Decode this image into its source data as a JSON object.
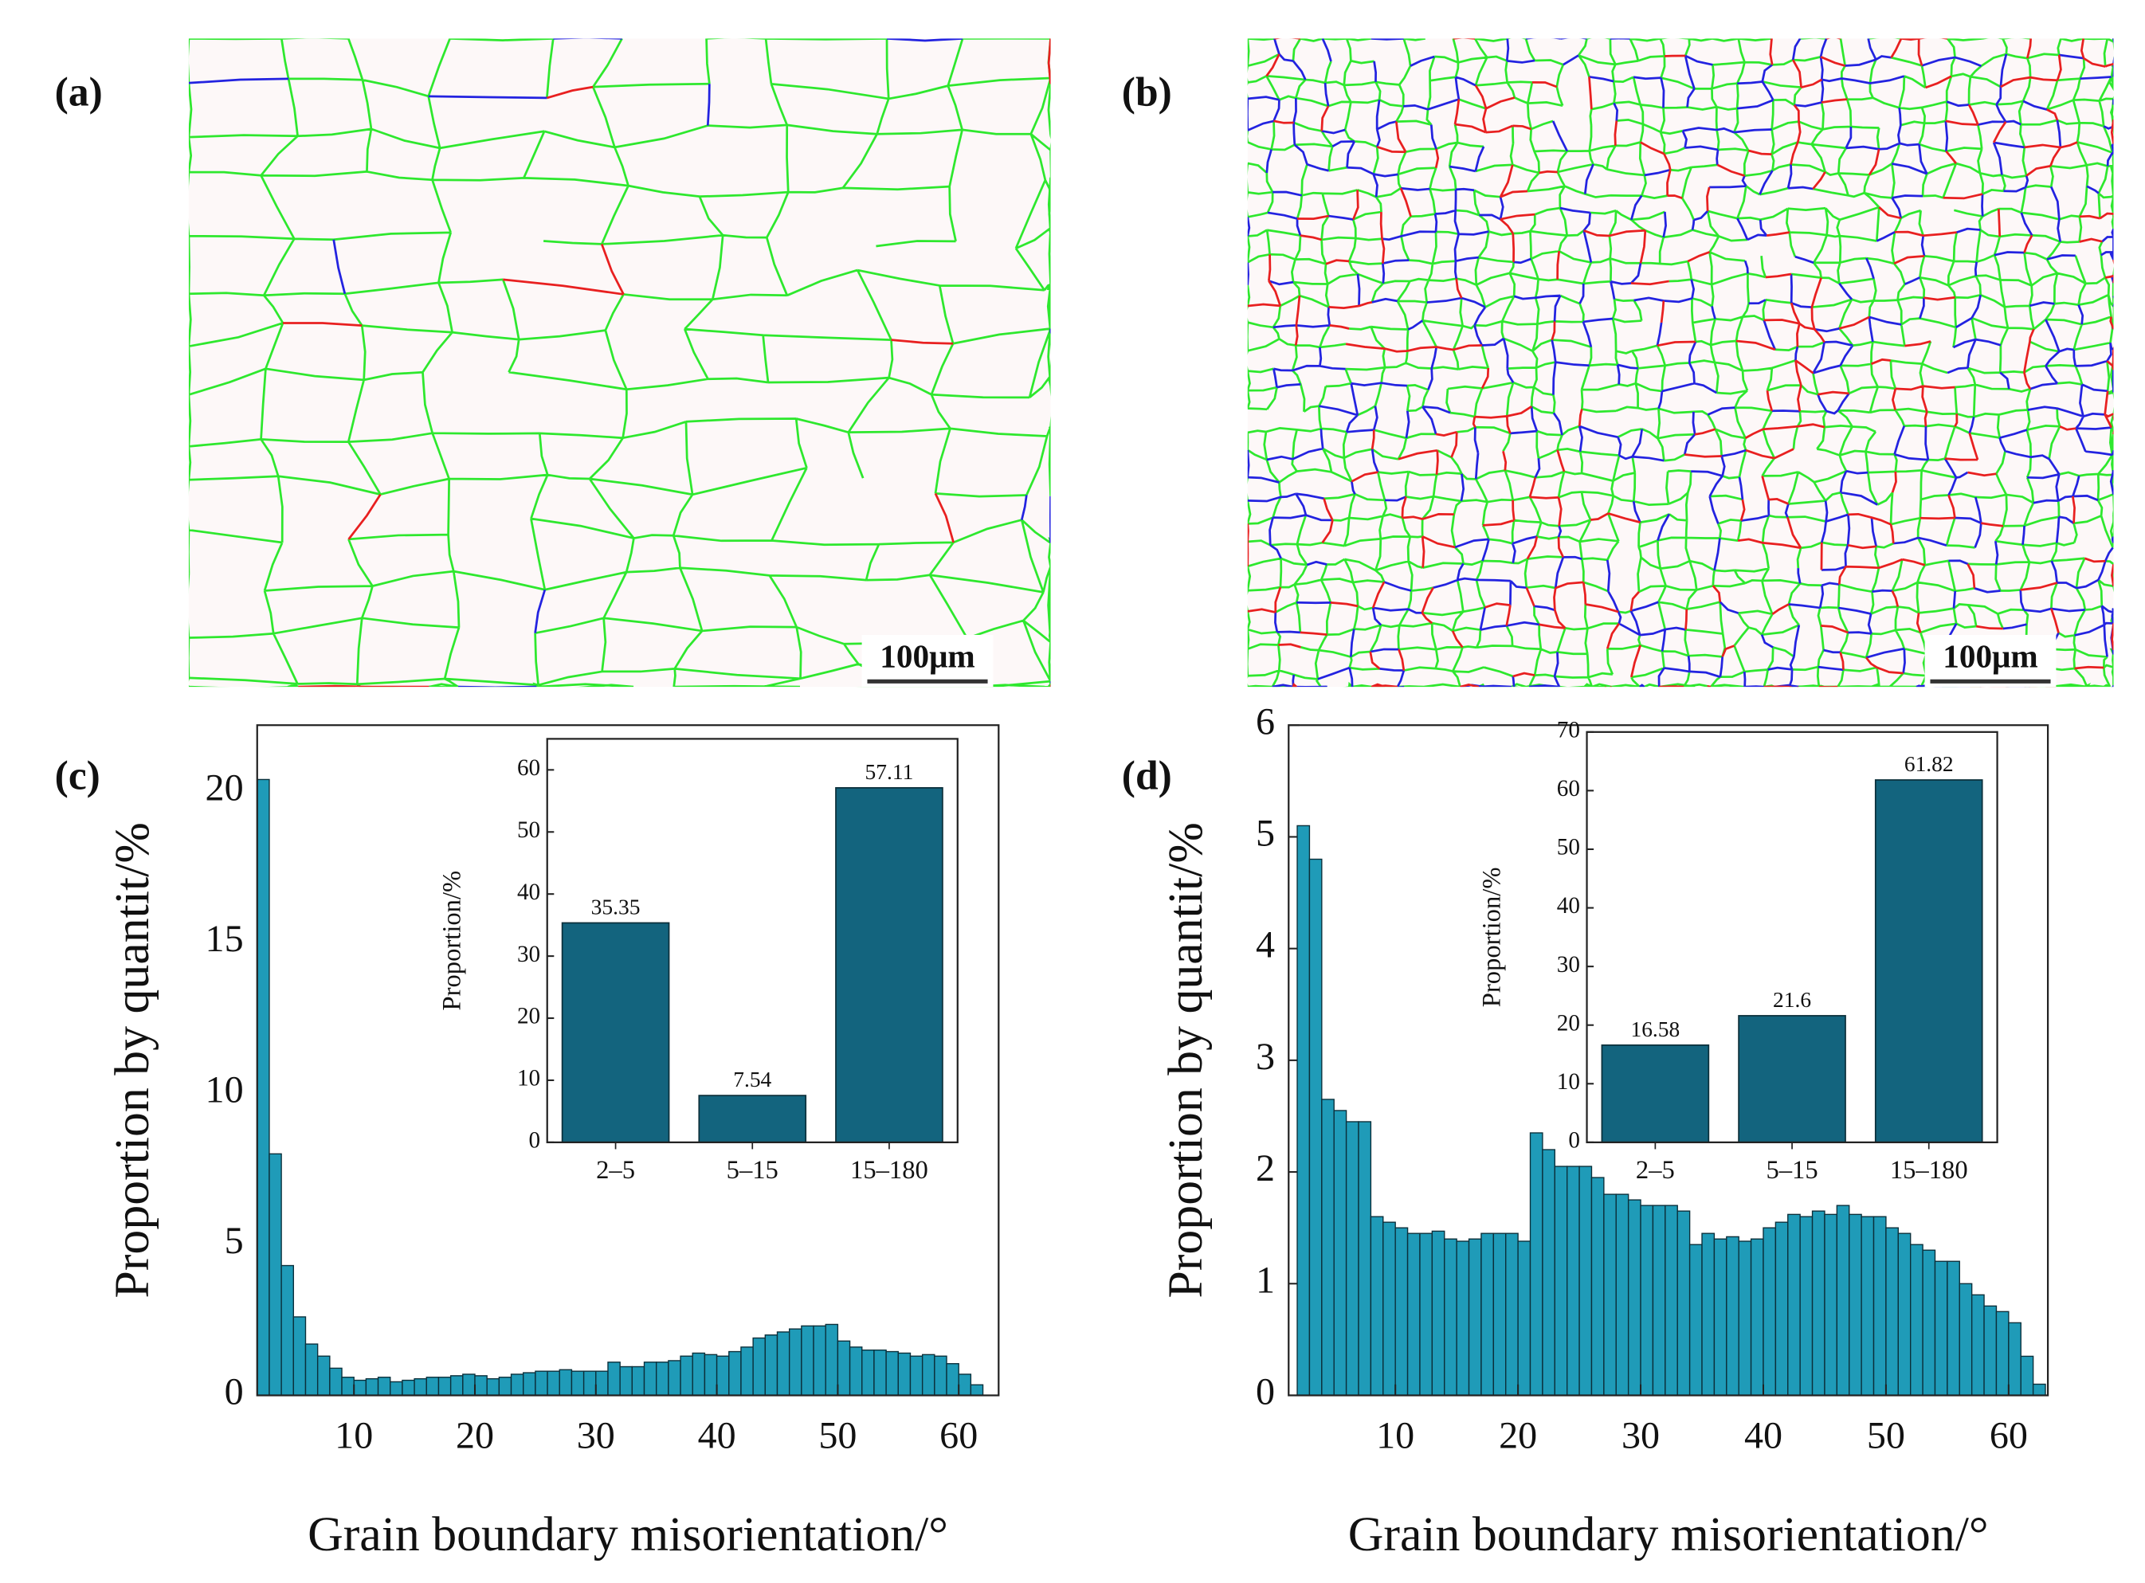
{
  "maps": [
    {
      "label": "(a)",
      "scale_bar": "100μm"
    },
    {
      "label": "(b)",
      "scale_bar": "100μm"
    }
  ],
  "chart_data": [
    {
      "type": "histogram",
      "panel_label": "(c)",
      "xlabel": "Grain boundary misorientation/°",
      "ylabel": "Proportion by quantit/%",
      "bins": [
        2,
        3,
        4,
        5,
        6,
        7,
        8,
        9,
        10,
        11,
        12,
        13,
        14,
        15,
        16,
        17,
        18,
        19,
        20,
        21,
        22,
        23,
        24,
        25,
        26,
        27,
        28,
        29,
        30,
        31,
        32,
        33,
        34,
        35,
        36,
        37,
        38,
        39,
        40,
        41,
        42,
        43,
        44,
        45,
        46,
        47,
        48,
        49,
        50,
        51,
        52,
        53,
        54,
        55,
        56,
        57,
        58,
        59,
        60,
        61,
        62
      ],
      "values": [
        20.4,
        8.0,
        4.3,
        2.6,
        1.7,
        1.3,
        0.9,
        0.6,
        0.5,
        0.55,
        0.6,
        0.45,
        0.5,
        0.55,
        0.6,
        0.6,
        0.65,
        0.7,
        0.65,
        0.55,
        0.6,
        0.7,
        0.75,
        0.8,
        0.8,
        0.85,
        0.8,
        0.8,
        0.8,
        1.1,
        0.95,
        0.95,
        1.1,
        1.1,
        1.15,
        1.3,
        1.4,
        1.35,
        1.3,
        1.45,
        1.6,
        1.9,
        2.0,
        2.1,
        2.2,
        2.3,
        2.3,
        2.35,
        1.8,
        1.6,
        1.5,
        1.5,
        1.45,
        1.4,
        1.3,
        1.35,
        1.3,
        1.05,
        0.7,
        0.35
      ],
      "color": "#1f9bb8",
      "xlim": [
        2,
        63.3
      ],
      "ylim": [
        0,
        22.2
      ],
      "xticks": [
        10,
        20,
        30,
        40,
        50,
        60
      ],
      "yticks": [
        0,
        5,
        10,
        15,
        20
      ]
    },
    {
      "type": "bar",
      "ylabel": "Proportion/%",
      "categories": [
        "2–5",
        "5–15",
        "15–180"
      ],
      "values": [
        35.35,
        7.54,
        57.11
      ],
      "color": "#13647e",
      "ylim": [
        0,
        65
      ],
      "yticks": [
        0,
        10,
        20,
        30,
        40,
        50,
        60
      ]
    },
    {
      "type": "histogram",
      "panel_label": "(d)",
      "xlabel": "Grain boundary misorientation/°",
      "ylabel": "Proportion by quantit/%",
      "bins": [
        2,
        3,
        4,
        5,
        6,
        7,
        8,
        9,
        10,
        11,
        12,
        13,
        14,
        15,
        16,
        17,
        18,
        19,
        20,
        21,
        22,
        23,
        24,
        25,
        26,
        27,
        28,
        29,
        30,
        31,
        32,
        33,
        34,
        35,
        36,
        37,
        38,
        39,
        40,
        41,
        42,
        43,
        44,
        45,
        46,
        47,
        48,
        49,
        50,
        51,
        52,
        53,
        54,
        55,
        56,
        57,
        58,
        59,
        60,
        61,
        62,
        63
      ],
      "values": [
        5.1,
        4.8,
        2.65,
        2.55,
        2.45,
        2.45,
        1.6,
        1.55,
        1.5,
        1.45,
        1.45,
        1.47,
        1.4,
        1.38,
        1.4,
        1.45,
        1.45,
        1.45,
        1.38,
        2.35,
        2.2,
        2.05,
        2.05,
        2.05,
        1.95,
        1.8,
        1.8,
        1.75,
        1.7,
        1.7,
        1.7,
        1.65,
        1.35,
        1.45,
        1.4,
        1.42,
        1.38,
        1.4,
        1.5,
        1.55,
        1.62,
        1.6,
        1.65,
        1.62,
        1.7,
        1.62,
        1.6,
        1.6,
        1.5,
        1.45,
        1.35,
        1.3,
        1.2,
        1.2,
        1.0,
        0.9,
        0.8,
        0.75,
        0.65,
        0.35,
        0.1
      ],
      "color": "#1f9bb8",
      "xlim": [
        1.3,
        63.2
      ],
      "ylim": [
        0,
        6
      ],
      "xticks": [
        10,
        20,
        30,
        40,
        50,
        60
      ],
      "yticks": [
        0,
        1,
        2,
        3,
        4,
        5,
        6
      ]
    },
    {
      "type": "bar",
      "ylabel": "Proportion/%",
      "categories": [
        "2–5",
        "5–15",
        "15–180"
      ],
      "values": [
        16.58,
        21.6,
        61.82
      ],
      "color": "#13647e",
      "ylim": [
        0,
        70
      ],
      "yticks": [
        0,
        10,
        20,
        30,
        40,
        50,
        60,
        70
      ]
    }
  ]
}
